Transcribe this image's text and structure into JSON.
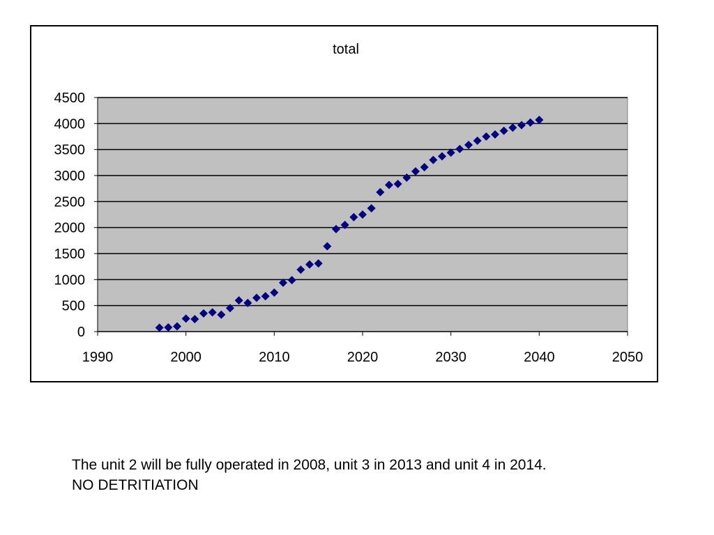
{
  "caption": {
    "line1": "The unit 2 will be fully operated in 2008, unit 3 in 2013 and unit 4 in 2014.",
    "line2": "NO DETRITIATION"
  },
  "chart_data": {
    "type": "scatter",
    "title": "total",
    "xlabel": "",
    "ylabel": "",
    "xlim": [
      1990,
      2050
    ],
    "ylim": [
      0,
      4500
    ],
    "x_ticks": [
      1990,
      2000,
      2010,
      2020,
      2030,
      2040,
      2050
    ],
    "y_ticks": [
      0,
      500,
      1000,
      1500,
      2000,
      2500,
      3000,
      3500,
      4000,
      4500
    ],
    "grid": "horizontal",
    "legend": "none",
    "colors": {
      "plot_background": "#c0c0c0",
      "marker": "#000080",
      "gridline": "#000000"
    },
    "series": [
      {
        "marker": "diamond",
        "points": [
          [
            1997,
            75
          ],
          [
            1998,
            80
          ],
          [
            1999,
            100
          ],
          [
            2000,
            250
          ],
          [
            2001,
            240
          ],
          [
            2002,
            350
          ],
          [
            2003,
            370
          ],
          [
            2004,
            325
          ],
          [
            2005,
            450
          ],
          [
            2006,
            600
          ],
          [
            2007,
            550
          ],
          [
            2008,
            650
          ],
          [
            2009,
            680
          ],
          [
            2010,
            750
          ],
          [
            2011,
            940
          ],
          [
            2012,
            990
          ],
          [
            2013,
            1190
          ],
          [
            2014,
            1290
          ],
          [
            2015,
            1310
          ],
          [
            2016,
            1640
          ],
          [
            2017,
            1970
          ],
          [
            2018,
            2050
          ],
          [
            2019,
            2200
          ],
          [
            2020,
            2250
          ],
          [
            2021,
            2370
          ],
          [
            2022,
            2680
          ],
          [
            2023,
            2820
          ],
          [
            2024,
            2840
          ],
          [
            2025,
            2960
          ],
          [
            2026,
            3080
          ],
          [
            2027,
            3160
          ],
          [
            2028,
            3300
          ],
          [
            2029,
            3370
          ],
          [
            2030,
            3440
          ],
          [
            2031,
            3510
          ],
          [
            2032,
            3590
          ],
          [
            2033,
            3670
          ],
          [
            2034,
            3750
          ],
          [
            2035,
            3790
          ],
          [
            2036,
            3860
          ],
          [
            2037,
            3920
          ],
          [
            2038,
            3970
          ],
          [
            2039,
            4020
          ],
          [
            2040,
            4070
          ]
        ]
      }
    ]
  }
}
